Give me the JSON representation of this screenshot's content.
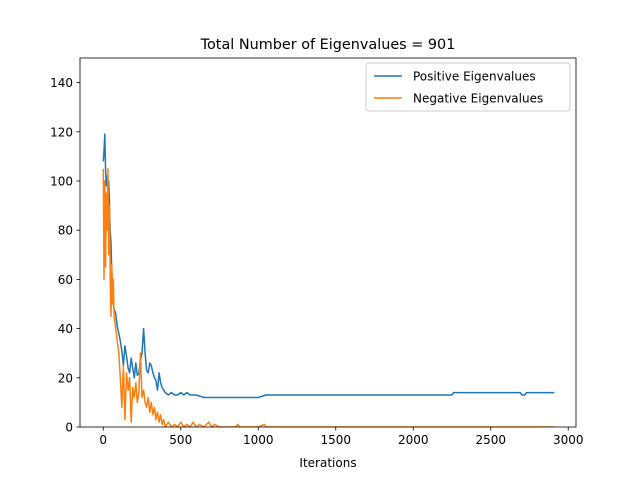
{
  "chart_data": {
    "type": "line",
    "title": "Total Number of Eigenvalues = 901",
    "xlabel": "Iterations",
    "ylabel": "",
    "xlim": [
      -150,
      3050
    ],
    "ylim": [
      0,
      150
    ],
    "xticks": [
      0,
      500,
      1000,
      1500,
      2000,
      2500,
      3000
    ],
    "yticks": [
      0,
      20,
      40,
      60,
      80,
      100,
      120,
      140
    ],
    "grid": false,
    "legend_position": "top-right",
    "series": [
      {
        "name": "Positive Eigenvalues",
        "color": "#1f77b4",
        "x": [
          0,
          5,
          10,
          15,
          20,
          25,
          30,
          35,
          40,
          45,
          50,
          55,
          60,
          65,
          70,
          80,
          90,
          100,
          110,
          120,
          130,
          140,
          150,
          160,
          170,
          180,
          190,
          200,
          210,
          220,
          230,
          240,
          250,
          260,
          270,
          280,
          290,
          300,
          310,
          320,
          330,
          340,
          350,
          360,
          370,
          380,
          390,
          400,
          420,
          440,
          460,
          480,
          500,
          520,
          540,
          560,
          580,
          600,
          650,
          700,
          750,
          800,
          850,
          900,
          950,
          1000,
          1050,
          1100,
          1150,
          1200,
          1300,
          1500,
          1700,
          1900,
          2100,
          2200,
          2250,
          2260,
          2400,
          2600,
          2690,
          2700,
          2720,
          2730,
          2800,
          2910
        ],
        "y": [
          108,
          112,
          119,
          104,
          98,
          102,
          95,
          100,
          90,
          80,
          75,
          62,
          55,
          50,
          48,
          46,
          41,
          38,
          35,
          31,
          25,
          33,
          29,
          24,
          22,
          28,
          24,
          20,
          26,
          21,
          22,
          27,
          30,
          40,
          30,
          23,
          22,
          26,
          25,
          22,
          20,
          19,
          15,
          22,
          18,
          16,
          15,
          14,
          13,
          14,
          13,
          13,
          14,
          13,
          14,
          13,
          13,
          13,
          12,
          12,
          12,
          12,
          12,
          12,
          12,
          12,
          13,
          13,
          13,
          13,
          13,
          13,
          13,
          13,
          13,
          13,
          13,
          14,
          14,
          14,
          14,
          13,
          13,
          14,
          14,
          14
        ]
      },
      {
        "name": "Negative Eigenvalues",
        "color": "#ff7f0e",
        "x": [
          0,
          5,
          10,
          15,
          20,
          25,
          30,
          35,
          40,
          45,
          50,
          55,
          60,
          65,
          70,
          80,
          90,
          100,
          110,
          120,
          130,
          140,
          150,
          160,
          170,
          180,
          190,
          200,
          210,
          220,
          230,
          240,
          250,
          260,
          270,
          280,
          290,
          300,
          310,
          320,
          330,
          340,
          350,
          360,
          370,
          380,
          390,
          400,
          420,
          440,
          460,
          480,
          500,
          520,
          540,
          560,
          580,
          600,
          620,
          650,
          680,
          700,
          720,
          750,
          800,
          850,
          870,
          880,
          900,
          950,
          1000,
          1040,
          1050,
          1060,
          1100,
          1200,
          1500,
          2000,
          2500,
          2910
        ],
        "y": [
          105,
          60,
          100,
          65,
          95,
          80,
          105,
          70,
          90,
          60,
          45,
          66,
          50,
          60,
          45,
          40,
          35,
          30,
          20,
          8,
          25,
          3,
          22,
          15,
          20,
          2,
          16,
          12,
          18,
          10,
          14,
          30,
          12,
          15,
          10,
          8,
          12,
          6,
          10,
          5,
          8,
          3,
          6,
          2,
          5,
          1,
          3,
          0,
          2,
          0,
          1,
          0,
          2,
          0,
          1,
          0,
          2,
          0,
          1,
          0,
          2,
          0,
          1,
          0,
          0,
          0,
          1,
          0,
          0,
          0,
          0,
          1,
          0,
          0,
          0,
          0,
          0,
          0,
          0,
          0
        ]
      }
    ]
  }
}
